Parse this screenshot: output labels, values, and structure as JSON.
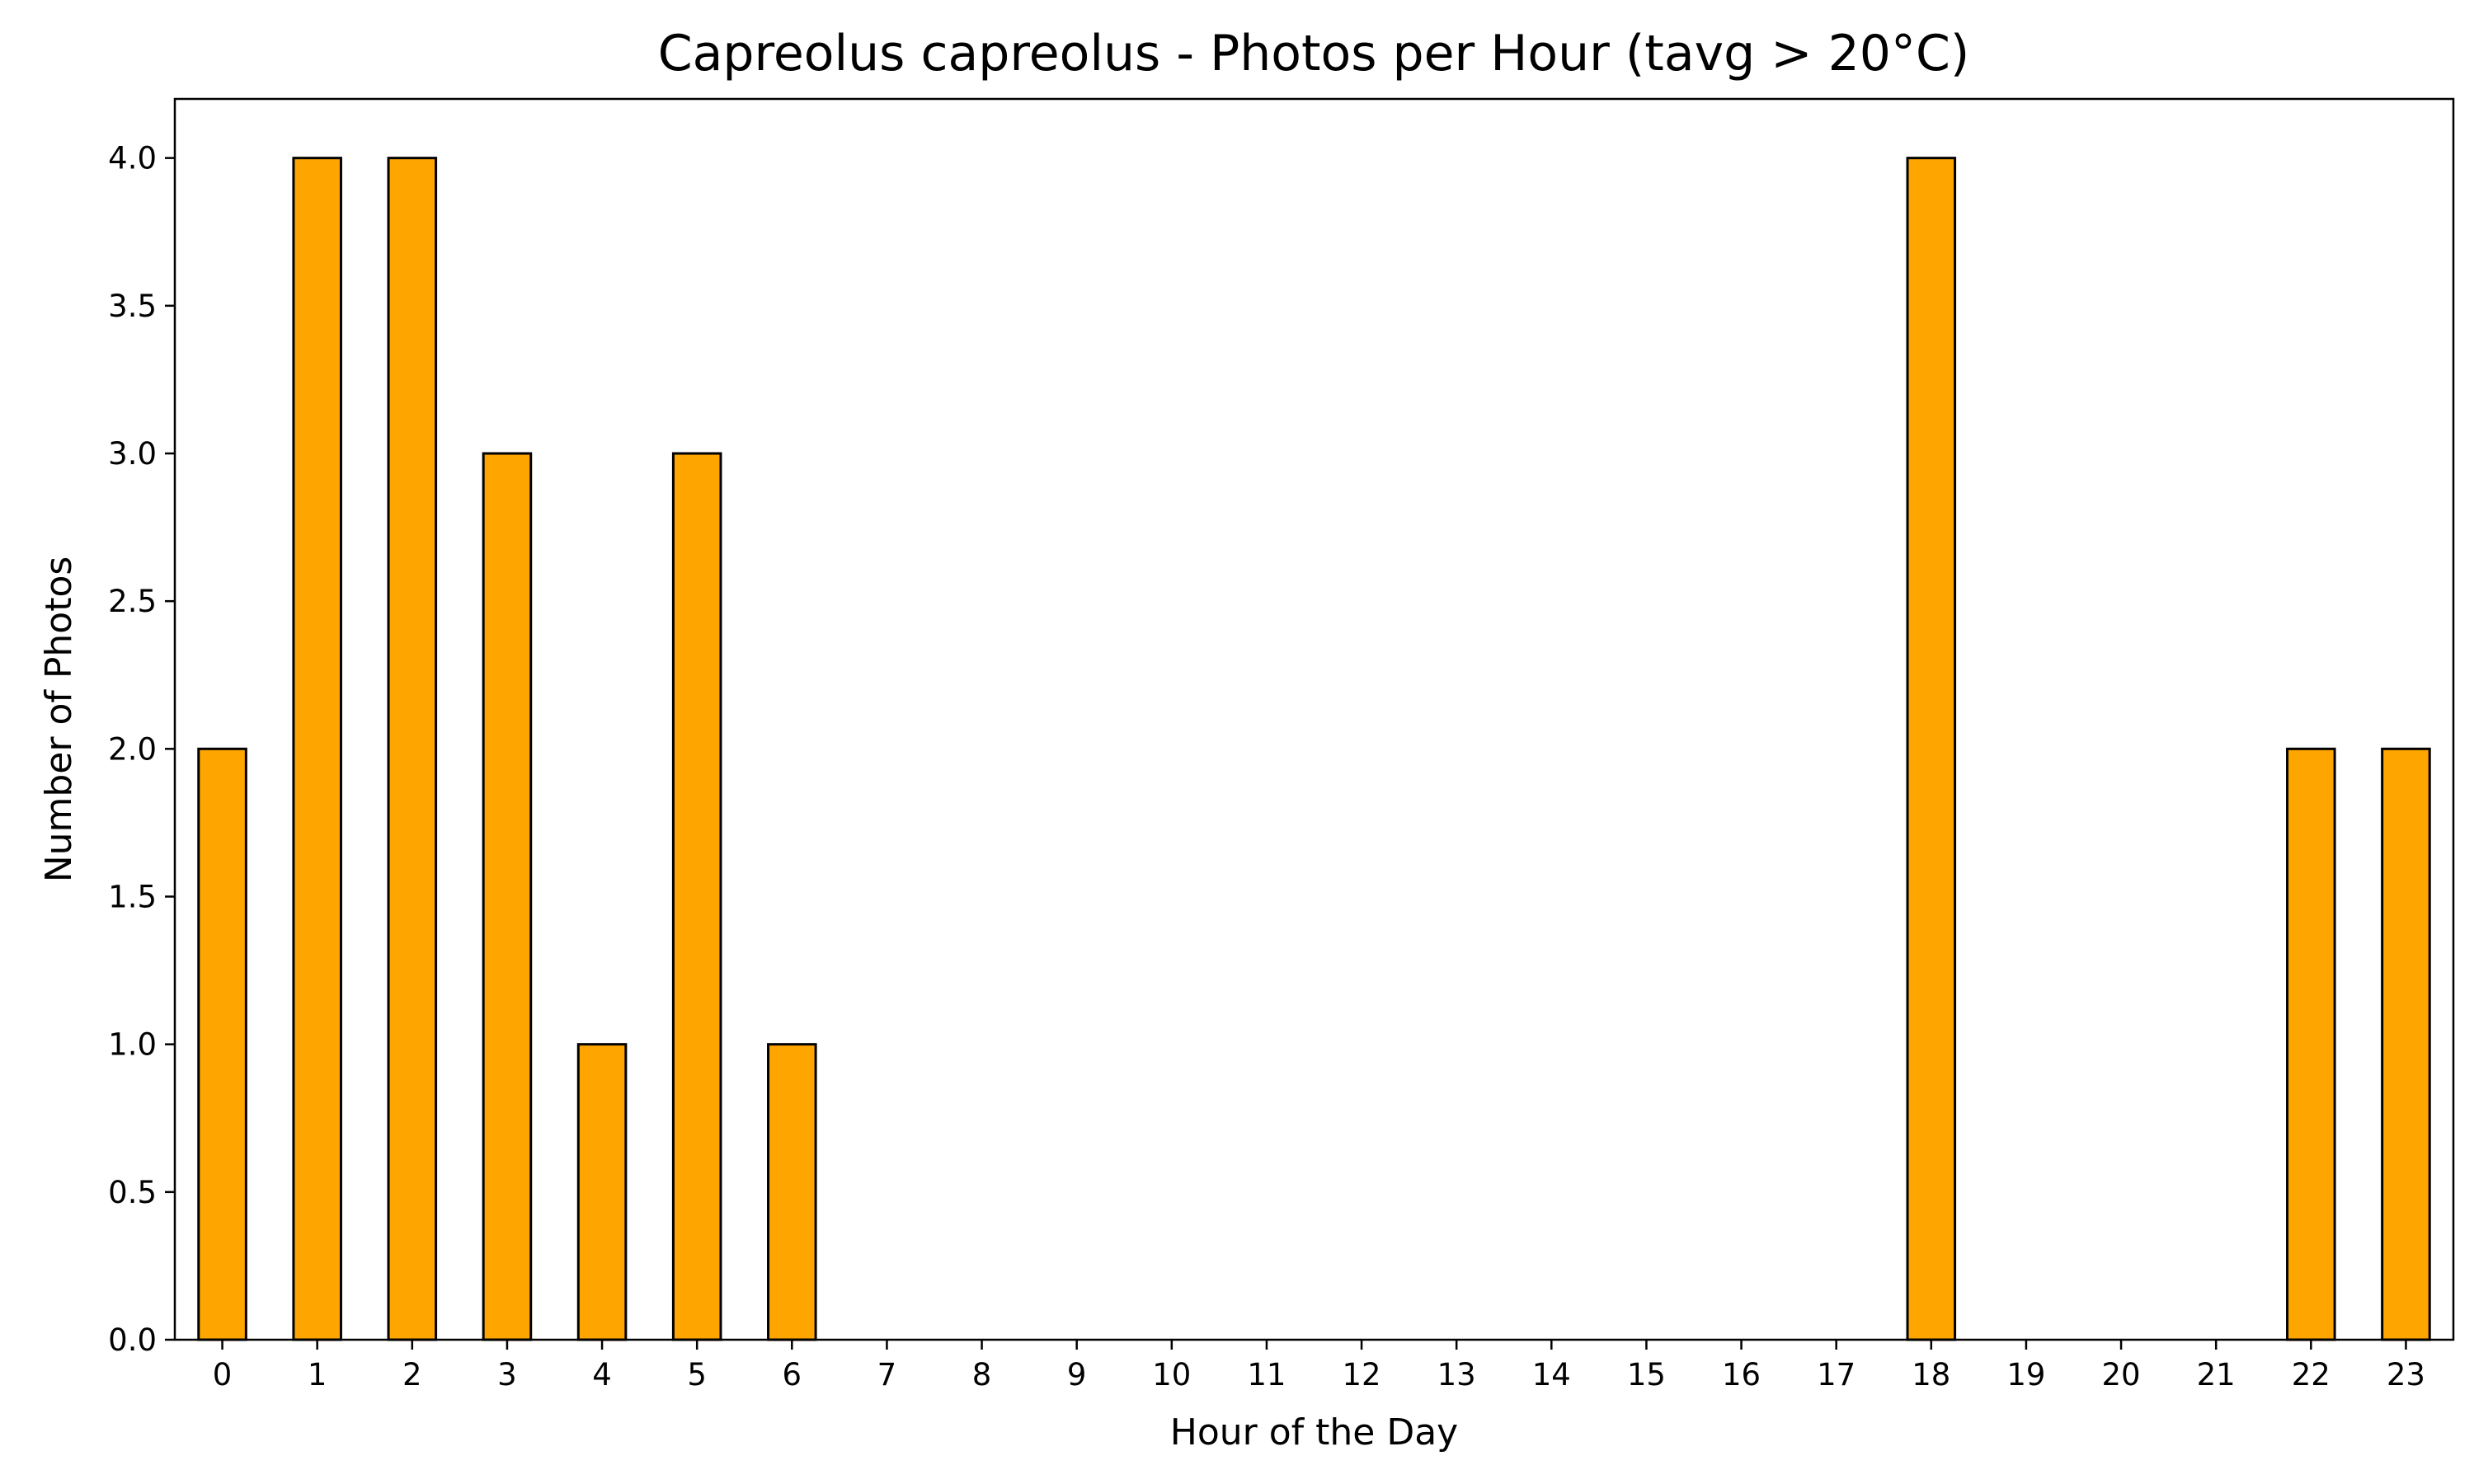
{
  "chart_data": {
    "type": "bar",
    "title": "Capreolus capreolus - Photos per Hour (tavg > 20°C)",
    "xlabel": "Hour of the Day",
    "ylabel": "Number of Photos",
    "categories": [
      "0",
      "1",
      "2",
      "3",
      "4",
      "5",
      "6",
      "7",
      "8",
      "9",
      "10",
      "11",
      "12",
      "13",
      "14",
      "15",
      "16",
      "17",
      "18",
      "19",
      "20",
      "21",
      "22",
      "23"
    ],
    "values": [
      2,
      4,
      4,
      3,
      1,
      3,
      1,
      0,
      0,
      0,
      0,
      0,
      0,
      0,
      0,
      0,
      0,
      0,
      4,
      0,
      0,
      0,
      2,
      2
    ],
    "ylim": [
      0,
      4.2
    ],
    "yticks": [
      0.0,
      0.5,
      1.0,
      1.5,
      2.0,
      2.5,
      3.0,
      3.5,
      4.0
    ],
    "ytick_labels": [
      "0.0",
      "0.5",
      "1.0",
      "1.5",
      "2.0",
      "2.5",
      "3.0",
      "3.5",
      "4.0"
    ],
    "grid": false,
    "bar_color": "#ffa500",
    "edge_color": "#000000"
  }
}
